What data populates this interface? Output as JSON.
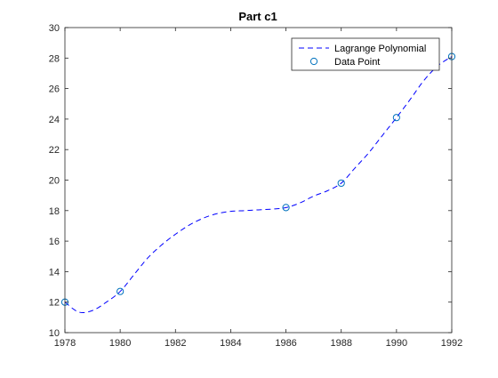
{
  "chart_data": {
    "type": "line",
    "title": "Part c1",
    "xlabel": "",
    "ylabel": "",
    "xlim": [
      1978,
      1992
    ],
    "ylim": [
      10,
      30
    ],
    "x_ticks": [
      1978,
      1980,
      1982,
      1984,
      1986,
      1988,
      1990,
      1992
    ],
    "y_ticks": [
      10,
      12,
      14,
      16,
      18,
      20,
      22,
      24,
      26,
      28,
      30
    ],
    "grid": false,
    "legend_position": "top-right",
    "series": [
      {
        "name": "Lagrange Polynomial",
        "style": "dashed-line",
        "color": "#0000ff",
        "x": [
          1978,
          1978.5,
          1979,
          1979.5,
          1980,
          1980.5,
          1981,
          1981.5,
          1982,
          1982.5,
          1983,
          1983.5,
          1984,
          1984.5,
          1985,
          1985.5,
          1986,
          1986.5,
          1987,
          1987.5,
          1988,
          1988.5,
          1989,
          1989.5,
          1990,
          1990.5,
          1991,
          1991.5,
          1992
        ],
        "y": [
          12.0,
          11.35,
          11.45,
          12.0,
          12.7,
          13.8,
          14.9,
          15.75,
          16.45,
          17.05,
          17.5,
          17.8,
          17.95,
          18.0,
          18.05,
          18.1,
          18.2,
          18.5,
          18.95,
          19.3,
          19.8,
          20.8,
          21.8,
          22.95,
          24.1,
          25.3,
          26.55,
          27.5,
          28.1
        ]
      },
      {
        "name": "Data Point",
        "style": "circle-marker",
        "color": "#0072bd",
        "x": [
          1978,
          1980,
          1986,
          1988,
          1990,
          1992
        ],
        "y": [
          12.0,
          12.7,
          18.2,
          19.8,
          24.1,
          28.1
        ]
      }
    ]
  }
}
